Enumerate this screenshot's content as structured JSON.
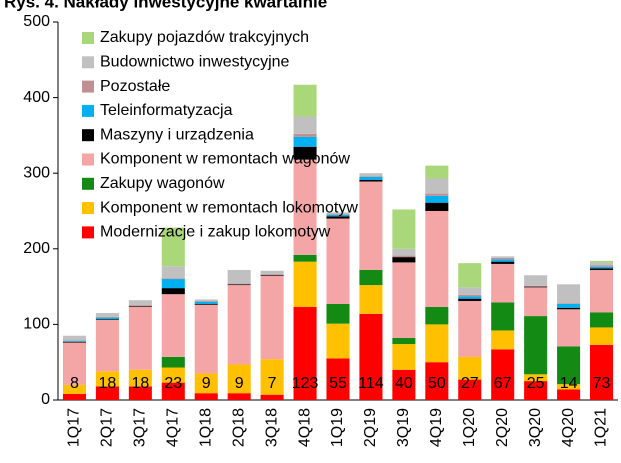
{
  "chart_data": {
    "type": "stacked_bar",
    "title": "Rys. 4. Nakłady inwestycyjne kwartalnie",
    "categories": [
      "1Q17",
      "2Q17",
      "3Q17",
      "4Q17",
      "1Q18",
      "2Q18",
      "3Q18",
      "4Q18",
      "1Q19",
      "2Q19",
      "3Q19",
      "4Q19",
      "1Q20",
      "2Q20",
      "3Q20",
      "4Q20",
      "1Q21"
    ],
    "series": [
      {
        "name": "Modernizacje i zakup lokomotyw",
        "color": "#ff0000",
        "values": [
          8,
          18,
          18,
          23,
          9,
          9,
          7,
          123,
          55,
          114,
          40,
          50,
          27,
          67,
          25,
          14,
          73
        ]
      },
      {
        "name": "Komponent w remontach lokomotyw",
        "color": "#ffc000",
        "values": [
          12,
          20,
          22,
          20,
          26,
          38,
          47,
          60,
          46,
          38,
          34,
          50,
          30,
          25,
          9,
          7,
          23
        ]
      },
      {
        "name": "Zakupy wagonów",
        "color": "#138a13",
        "values": [
          0,
          0,
          0,
          14,
          0,
          0,
          0,
          9,
          26,
          20,
          8,
          23,
          0,
          37,
          77,
          50,
          20
        ]
      },
      {
        "name": "Komponent w remontach wagonów",
        "color": "#f4a6a6",
        "values": [
          56,
          68,
          83,
          83,
          91,
          105,
          110,
          126,
          113,
          117,
          100,
          127,
          74,
          51,
          38,
          49,
          56
        ]
      },
      {
        "name": "Maszyny i urządzenia",
        "color": "#000000",
        "values": [
          1,
          1,
          1,
          8,
          1,
          1,
          1,
          17,
          3,
          2,
          7,
          11,
          3,
          3,
          1,
          2,
          2
        ]
      },
      {
        "name": "Teleinformatyzacja",
        "color": "#00b0f0",
        "values": [
          1,
          2,
          0,
          12,
          3,
          0,
          0,
          13,
          2,
          4,
          0,
          9,
          3,
          3,
          0,
          5,
          2
        ]
      },
      {
        "name": "Pozostałe",
        "color": "#c09090",
        "values": [
          1,
          1,
          1,
          1,
          1,
          1,
          1,
          4,
          1,
          1,
          2,
          3,
          2,
          2,
          1,
          1,
          2
        ]
      },
      {
        "name": "Budownictwo inwestycyjne",
        "color": "#c0c0c0",
        "values": [
          6,
          5,
          7,
          16,
          2,
          18,
          5,
          23,
          2,
          4,
          9,
          20,
          10,
          2,
          14,
          25,
          4
        ]
      },
      {
        "name": "Zakupy pojazdów trakcyjnych",
        "color": "#a9d77a",
        "values": [
          0,
          0,
          0,
          51,
          0,
          0,
          0,
          42,
          0,
          0,
          52,
          17,
          32,
          0,
          0,
          0,
          2
        ]
      }
    ],
    "ylim": [
      0,
      500
    ],
    "yticks": [
      0,
      100,
      200,
      300,
      400,
      500
    ],
    "grid": false,
    "legend": "upper left"
  }
}
